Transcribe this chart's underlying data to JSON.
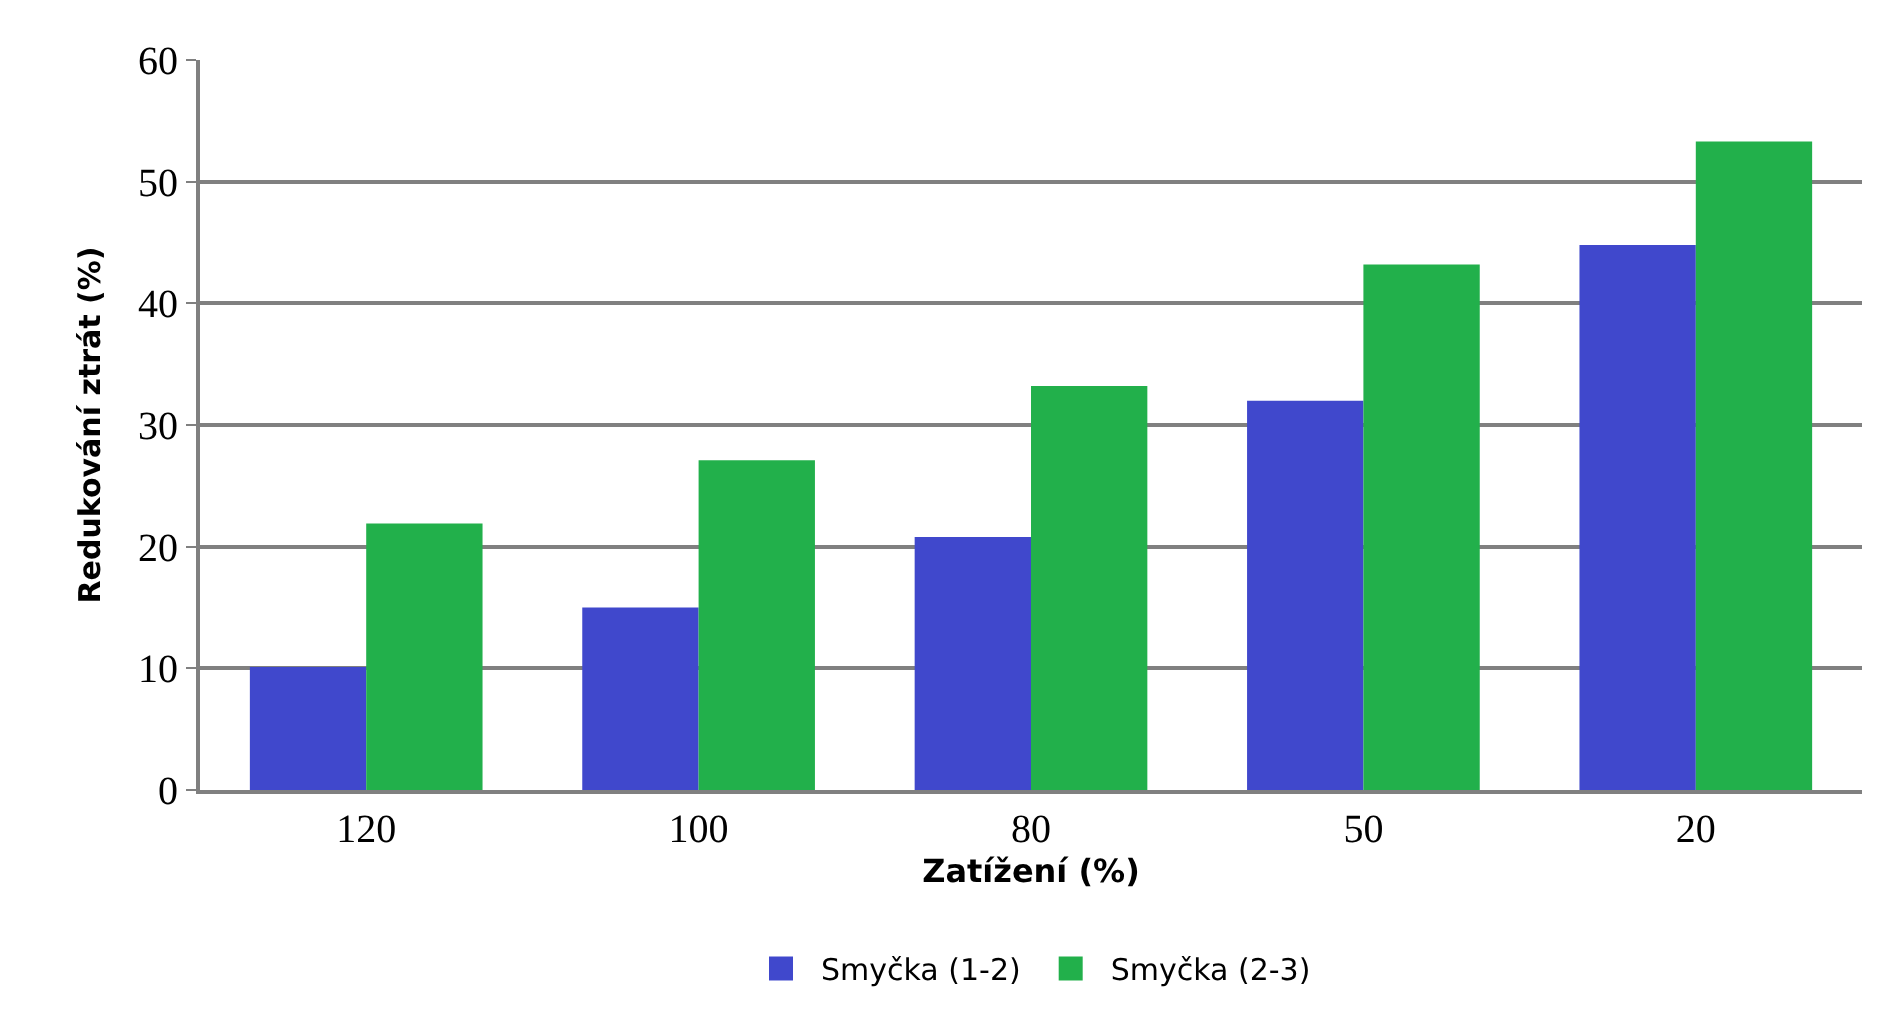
{
  "chart_data": {
    "type": "bar",
    "xlabel": "Zatížení (%)",
    "ylabel": "Redukování ztrát (%)",
    "categories": [
      "120",
      "100",
      "80",
      "50",
      "20"
    ],
    "series": [
      {
        "name": "Smyčka (1-2)",
        "color": "#4048cc",
        "values": [
          10.1,
          15.0,
          20.8,
          32.0,
          44.8
        ]
      },
      {
        "name": "Smyčka (2-3)",
        "color": "#22b04b",
        "values": [
          21.9,
          27.1,
          33.2,
          43.2,
          53.3
        ]
      }
    ],
    "ylim": [
      0,
      60
    ],
    "yticks": [
      0,
      10,
      20,
      30,
      40,
      50,
      60
    ],
    "grid": "y",
    "legend": "bottom"
  }
}
